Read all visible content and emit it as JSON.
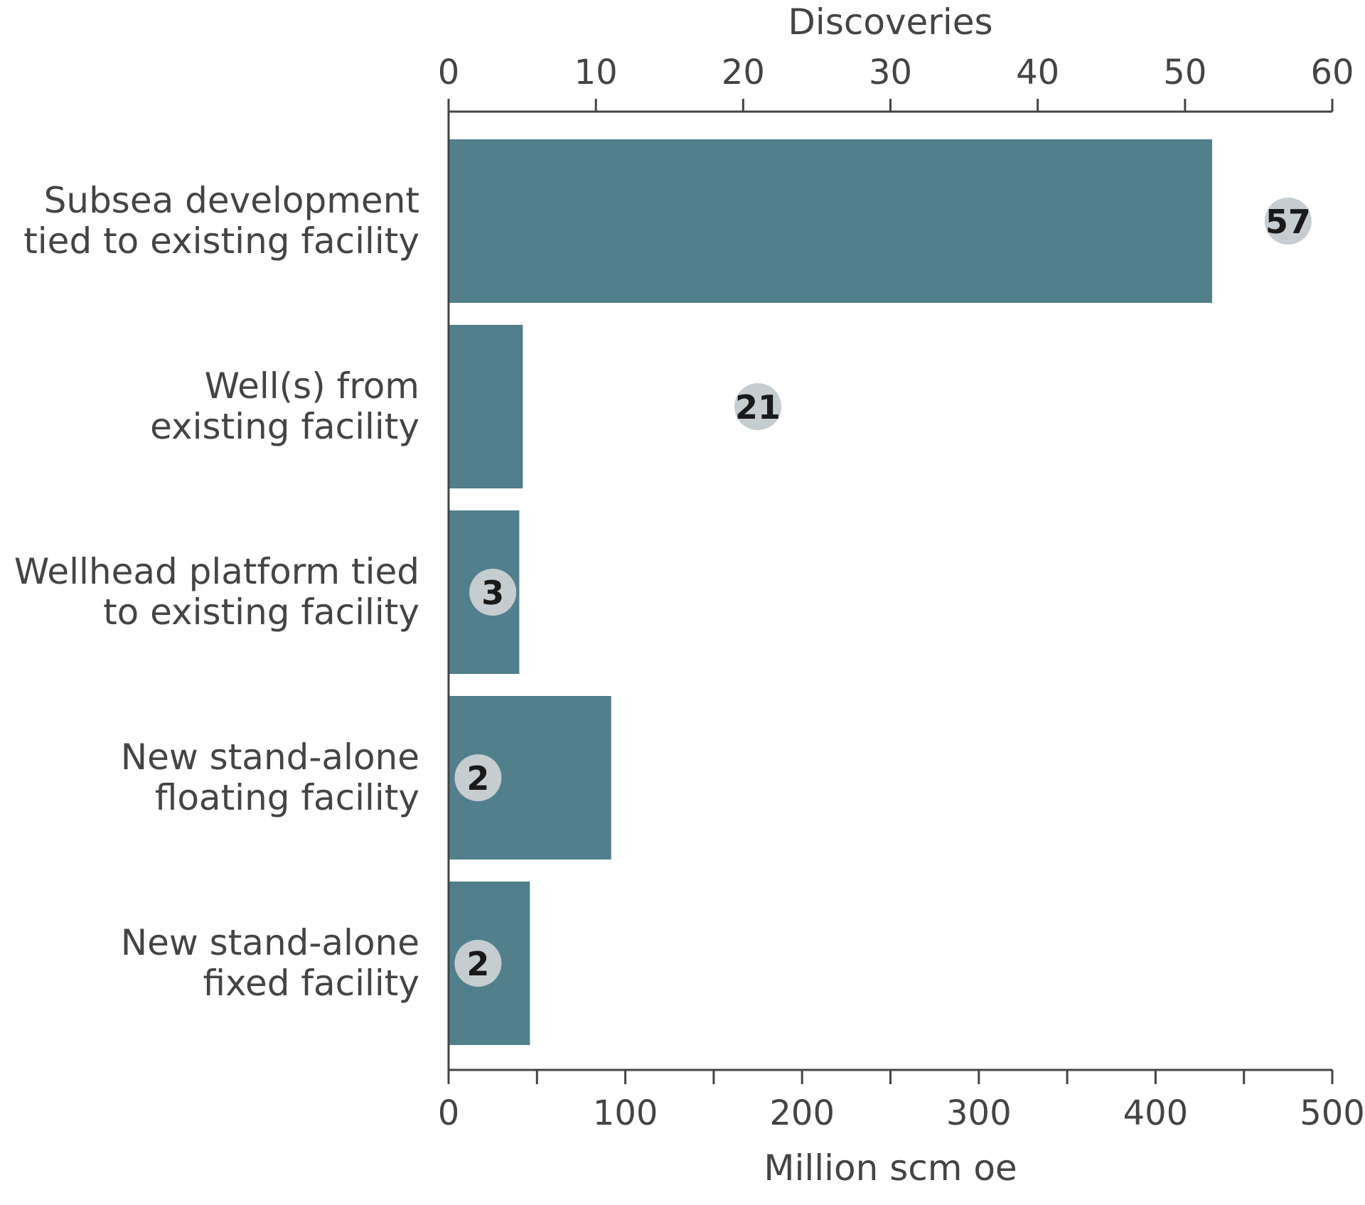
{
  "chart_data": {
    "type": "bar",
    "orientation": "horizontal",
    "categories": [
      [
        "Subsea development",
        "tied to existing facility"
      ],
      [
        "Well(s) from",
        "existing facility"
      ],
      [
        "Wellhead platform tied",
        "to existing facility"
      ],
      [
        "New stand-alone",
        "floating facility"
      ],
      [
        "New stand-alone",
        "fixed facility"
      ]
    ],
    "series": [
      {
        "values": [
          432,
          42,
          40,
          92,
          46
        ]
      }
    ],
    "discoveries": [
      57,
      21,
      3,
      2,
      2
    ],
    "xlabel": "Million scm oe",
    "xlim": [
      0,
      500
    ],
    "xticks": [
      "0",
      "100",
      "200",
      "300",
      "400",
      "500"
    ],
    "x2label": "Discoveries",
    "x2lim": [
      0,
      60
    ],
    "x2ticks": [
      "0",
      "10",
      "20",
      "30",
      "40",
      "50",
      "60"
    ],
    "grid": false,
    "colors": {
      "bar": "#527f8c",
      "bubble": "#c5cdd1",
      "axis": "#444444"
    }
  }
}
